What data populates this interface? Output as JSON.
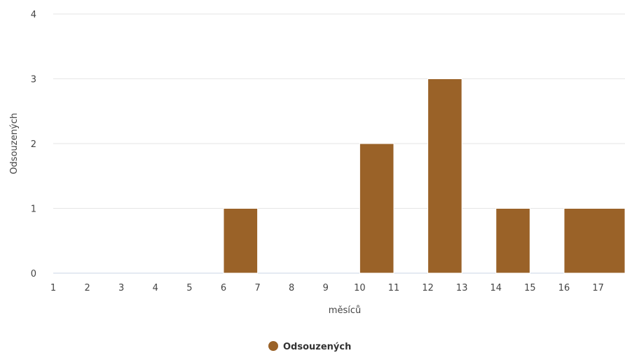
{
  "chart_data": {
    "type": "bar",
    "x_ticks": [
      "1",
      "2",
      "3",
      "4",
      "5",
      "6",
      "7",
      "8",
      "9",
      "10",
      "11",
      "12",
      "13",
      "14",
      "15",
      "16",
      "17"
    ],
    "bars": [
      {
        "from": 6,
        "to": 7,
        "value": 1
      },
      {
        "from": 10,
        "to": 11,
        "value": 2
      },
      {
        "from": 12,
        "to": 13,
        "value": 3
      },
      {
        "from": 14,
        "to": 15,
        "value": 1
      },
      {
        "from": 16,
        "to": 18,
        "value": 1
      }
    ],
    "y_ticks": [
      "0",
      "1",
      "2",
      "3",
      "4"
    ],
    "ylim": [
      0,
      4
    ],
    "xlim": [
      1,
      18.3
    ],
    "xlabel": "měsíců",
    "ylabel": "Odsouzených",
    "grid": true,
    "legend": {
      "position": "bottom-center",
      "entries": [
        {
          "name": "Odsouzených",
          "color": "#9a6228"
        }
      ]
    },
    "series_color": "#9a6228"
  }
}
